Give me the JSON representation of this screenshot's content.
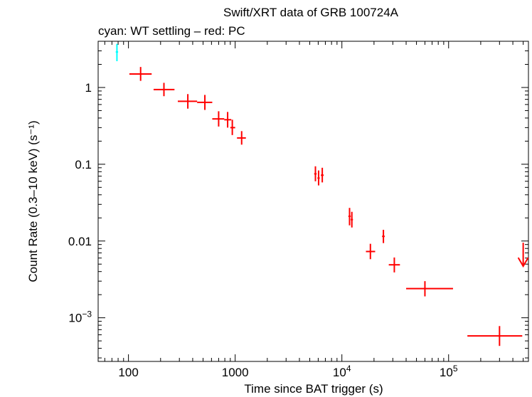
{
  "chart_data": {
    "type": "scatter",
    "title": "Swift/XRT data of GRB 100724A",
    "subtitle": "cyan: WT settling – red: PC",
    "xlabel": "Time since BAT trigger (s)",
    "ylabel": "Count Rate (0.3–10 keV) (s⁻¹)",
    "x_scale": "log",
    "y_scale": "log",
    "xlim": [
      52,
      560000
    ],
    "ylim": [
      0.00027,
      4.0
    ],
    "grid": false,
    "x_ticks": [
      {
        "value": 100,
        "label": "100"
      },
      {
        "value": 1000,
        "label": "1000"
      },
      {
        "value": 10000,
        "label": "10",
        "exp": "4"
      },
      {
        "value": 100000,
        "label": "10",
        "exp": "5"
      }
    ],
    "y_ticks": [
      {
        "value": 1,
        "label": "1"
      },
      {
        "value": 0.1,
        "label": "0.1"
      },
      {
        "value": 0.01,
        "label": "0.01"
      },
      {
        "value": 0.001,
        "label": "10",
        "exp": "−3"
      }
    ],
    "colors": {
      "wt": "#00ffff",
      "pc": "#ff0000",
      "axis": "#000000"
    },
    "series": [
      {
        "name": "WT settling",
        "color": "#00ffff",
        "points": [
          {
            "x": 78,
            "xlo": 76,
            "xhi": 80,
            "y": 2.9,
            "ylo": 2.2,
            "yhi": 3.7
          }
        ]
      },
      {
        "name": "PC",
        "color": "#ff0000",
        "points": [
          {
            "x": 130,
            "xlo": 102,
            "xhi": 165,
            "y": 1.5,
            "ylo": 1.22,
            "yhi": 1.85
          },
          {
            "x": 215,
            "xlo": 172,
            "xhi": 270,
            "y": 0.94,
            "ylo": 0.77,
            "yhi": 1.15
          },
          {
            "x": 360,
            "xlo": 290,
            "xhi": 440,
            "y": 0.66,
            "ylo": 0.53,
            "yhi": 0.82
          },
          {
            "x": 520,
            "xlo": 440,
            "xhi": 610,
            "y": 0.64,
            "ylo": 0.51,
            "yhi": 0.8
          },
          {
            "x": 700,
            "xlo": 610,
            "xhi": 790,
            "y": 0.39,
            "ylo": 0.31,
            "yhi": 0.49
          },
          {
            "x": 850,
            "xlo": 790,
            "xhi": 920,
            "y": 0.38,
            "ylo": 0.3,
            "yhi": 0.48
          },
          {
            "x": 940,
            "xlo": 900,
            "xhi": 1000,
            "y": 0.3,
            "ylo": 0.24,
            "yhi": 0.38
          },
          {
            "x": 1150,
            "xlo": 1040,
            "xhi": 1260,
            "y": 0.22,
            "ylo": 0.18,
            "yhi": 0.27
          },
          {
            "x": 5650,
            "xlo": 5500,
            "xhi": 5800,
            "y": 0.075,
            "ylo": 0.06,
            "yhi": 0.094
          },
          {
            "x": 6050,
            "xlo": 5900,
            "xhi": 6200,
            "y": 0.066,
            "ylo": 0.053,
            "yhi": 0.083
          },
          {
            "x": 6550,
            "xlo": 6350,
            "xhi": 6750,
            "y": 0.072,
            "ylo": 0.058,
            "yhi": 0.09
          },
          {
            "x": 11800,
            "xlo": 11500,
            "xhi": 12100,
            "y": 0.021,
            "ylo": 0.016,
            "yhi": 0.027
          },
          {
            "x": 12400,
            "xlo": 12100,
            "xhi": 12700,
            "y": 0.019,
            "ylo": 0.015,
            "yhi": 0.024
          },
          {
            "x": 18500,
            "xlo": 16800,
            "xhi": 20500,
            "y": 0.0073,
            "ylo": 0.0058,
            "yhi": 0.0092
          },
          {
            "x": 24500,
            "xlo": 23800,
            "xhi": 25200,
            "y": 0.0115,
            "ylo": 0.0094,
            "yhi": 0.014
          },
          {
            "x": 31000,
            "xlo": 27500,
            "xhi": 35000,
            "y": 0.0049,
            "ylo": 0.0039,
            "yhi": 0.0061
          },
          {
            "x": 60000,
            "xlo": 40000,
            "xhi": 110000,
            "y": 0.0024,
            "ylo": 0.0019,
            "yhi": 0.003
          },
          {
            "x": 300000,
            "xlo": 150000,
            "xhi": 490000,
            "y": 0.00058,
            "ylo": 0.00043,
            "yhi": 0.00078
          }
        ]
      },
      {
        "name": "PC upper limit",
        "color": "#ff0000",
        "upper_limit": true,
        "points": [
          {
            "x": 500000,
            "y": 0.0047,
            "ytop": 0.0095
          }
        ]
      }
    ]
  }
}
